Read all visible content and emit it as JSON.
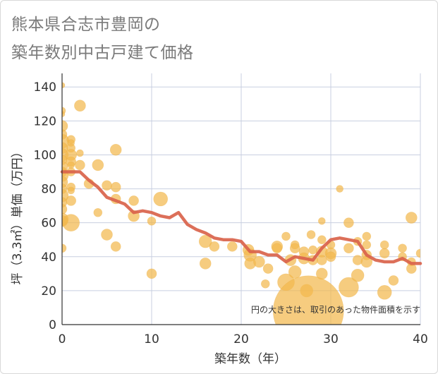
{
  "chart_data": {
    "type": "scatter",
    "title": "熊本県合志市豊岡の 築年数別中古戸建て価格",
    "title_lines": [
      "熊本県合志市豊岡の",
      "築年数別中古戸建て価格"
    ],
    "xlabel": "築年数（年）",
    "ylabel": "坪（3.3㎡）単価（万円）",
    "xlim": [
      0,
      40
    ],
    "ylim": [
      0,
      148
    ],
    "xticks": [
      0,
      10,
      20,
      30,
      40
    ],
    "yticks": [
      0,
      20,
      40,
      60,
      80,
      100,
      120,
      140
    ],
    "grid": true,
    "note": "円の大きさは、取引のあった物件面積を示す",
    "colors": {
      "bubble": "#f3b84e",
      "trend": "#d9634b",
      "grid": "#c8cfe0"
    },
    "scatter": [
      {
        "x": 0,
        "y": 141,
        "s": 4
      },
      {
        "x": 0,
        "y": 126,
        "s": 5
      },
      {
        "x": 0,
        "y": 124,
        "s": 4
      },
      {
        "x": 0,
        "y": 117,
        "s": 8
      },
      {
        "x": 0,
        "y": 112,
        "s": 7
      },
      {
        "x": 0,
        "y": 108,
        "s": 10
      },
      {
        "x": 0,
        "y": 104,
        "s": 8
      },
      {
        "x": 0,
        "y": 100,
        "s": 9
      },
      {
        "x": 0,
        "y": 97,
        "s": 7
      },
      {
        "x": 0,
        "y": 93,
        "s": 8
      },
      {
        "x": 0,
        "y": 90,
        "s": 7
      },
      {
        "x": 0,
        "y": 88,
        "s": 9
      },
      {
        "x": 0,
        "y": 84,
        "s": 8
      },
      {
        "x": 0,
        "y": 80,
        "s": 7
      },
      {
        "x": 0,
        "y": 76,
        "s": 9
      },
      {
        "x": 0,
        "y": 72,
        "s": 7
      },
      {
        "x": 0,
        "y": 68,
        "s": 7
      },
      {
        "x": 0,
        "y": 62,
        "s": 9
      },
      {
        "x": 0,
        "y": 61,
        "s": 8
      },
      {
        "x": 0,
        "y": 45,
        "s": 6
      },
      {
        "x": 1,
        "y": 109,
        "s": 6
      },
      {
        "x": 1,
        "y": 107,
        "s": 5
      },
      {
        "x": 1,
        "y": 104,
        "s": 6
      },
      {
        "x": 1,
        "y": 100,
        "s": 8
      },
      {
        "x": 1,
        "y": 96,
        "s": 7
      },
      {
        "x": 1,
        "y": 94,
        "s": 5
      },
      {
        "x": 1,
        "y": 90,
        "s": 6
      },
      {
        "x": 1,
        "y": 81,
        "s": 6
      },
      {
        "x": 1,
        "y": 79,
        "s": 5
      },
      {
        "x": 1,
        "y": 73,
        "s": 7
      },
      {
        "x": 1,
        "y": 60,
        "s": 12
      },
      {
        "x": 2,
        "y": 129,
        "s": 8
      },
      {
        "x": 2,
        "y": 101,
        "s": 5
      },
      {
        "x": 2,
        "y": 94,
        "s": 7
      },
      {
        "x": 3,
        "y": 83,
        "s": 7
      },
      {
        "x": 4,
        "y": 94,
        "s": 8
      },
      {
        "x": 4,
        "y": 66,
        "s": 6
      },
      {
        "x": 5,
        "y": 82,
        "s": 7
      },
      {
        "x": 5,
        "y": 53,
        "s": 8
      },
      {
        "x": 6,
        "y": 103,
        "s": 8
      },
      {
        "x": 6,
        "y": 81,
        "s": 7
      },
      {
        "x": 6,
        "y": 74,
        "s": 7
      },
      {
        "x": 6,
        "y": 46,
        "s": 7
      },
      {
        "x": 8,
        "y": 73,
        "s": 7
      },
      {
        "x": 8,
        "y": 64,
        "s": 8
      },
      {
        "x": 10,
        "y": 61,
        "s": 6
      },
      {
        "x": 10,
        "y": 30,
        "s": 7
      },
      {
        "x": 11,
        "y": 74,
        "s": 10
      },
      {
        "x": 16,
        "y": 49,
        "s": 9
      },
      {
        "x": 16,
        "y": 36,
        "s": 8
      },
      {
        "x": 17,
        "y": 46,
        "s": 7
      },
      {
        "x": 19,
        "y": 46,
        "s": 7
      },
      {
        "x": 20.8,
        "y": 44,
        "s": 8
      },
      {
        "x": 21,
        "y": 41,
        "s": 9
      },
      {
        "x": 21,
        "y": 36,
        "s": 8
      },
      {
        "x": 22,
        "y": 37,
        "s": 8
      },
      {
        "x": 22.7,
        "y": 24,
        "s": 6
      },
      {
        "x": 23,
        "y": 33,
        "s": 7
      },
      {
        "x": 24,
        "y": 46,
        "s": 8
      },
      {
        "x": 24,
        "y": 45,
        "s": 7
      },
      {
        "x": 25,
        "y": 52,
        "s": 6
      },
      {
        "x": 25,
        "y": 25,
        "s": 12
      },
      {
        "x": 25.5,
        "y": 38,
        "s": 8
      },
      {
        "x": 26,
        "y": 47,
        "s": 6
      },
      {
        "x": 26,
        "y": 31,
        "s": 9
      },
      {
        "x": 26,
        "y": 45,
        "s": 7
      },
      {
        "x": 27,
        "y": 43,
        "s": 7
      },
      {
        "x": 27,
        "y": 39,
        "s": 8
      },
      {
        "x": 27.3,
        "y": 20,
        "s": 9
      },
      {
        "x": 27.8,
        "y": 53,
        "s": 6
      },
      {
        "x": 28,
        "y": 44,
        "s": 6
      },
      {
        "x": 28,
        "y": 38,
        "s": 7
      },
      {
        "x": 27.5,
        "y": 8,
        "s": 50
      },
      {
        "x": 29,
        "y": 61,
        "s": 5
      },
      {
        "x": 29,
        "y": 50,
        "s": 6
      },
      {
        "x": 29,
        "y": 43,
        "s": 8
      },
      {
        "x": 29,
        "y": 38,
        "s": 7
      },
      {
        "x": 29,
        "y": 30,
        "s": 8
      },
      {
        "x": 30,
        "y": 47,
        "s": 6
      },
      {
        "x": 30,
        "y": 42,
        "s": 8
      },
      {
        "x": 30,
        "y": 40,
        "s": 7
      },
      {
        "x": 31,
        "y": 80,
        "s": 5
      },
      {
        "x": 32,
        "y": 60,
        "s": 7
      },
      {
        "x": 32,
        "y": 45,
        "s": 7
      },
      {
        "x": 32,
        "y": 22,
        "s": 14
      },
      {
        "x": 33,
        "y": 49,
        "s": 6
      },
      {
        "x": 33,
        "y": 38,
        "s": 7
      },
      {
        "x": 33,
        "y": 29,
        "s": 9
      },
      {
        "x": 34,
        "y": 52,
        "s": 6
      },
      {
        "x": 34,
        "y": 47,
        "s": 6
      },
      {
        "x": 34,
        "y": 41,
        "s": 7
      },
      {
        "x": 34,
        "y": 37,
        "s": 8
      },
      {
        "x": 36,
        "y": 47,
        "s": 6
      },
      {
        "x": 36,
        "y": 42,
        "s": 7
      },
      {
        "x": 36,
        "y": 19,
        "s": 10
      },
      {
        "x": 37,
        "y": 26,
        "s": 7
      },
      {
        "x": 38,
        "y": 45,
        "s": 6
      },
      {
        "x": 38,
        "y": 40,
        "s": 6
      },
      {
        "x": 39,
        "y": 63,
        "s": 8
      },
      {
        "x": 39,
        "y": 37,
        "s": 6
      },
      {
        "x": 39,
        "y": 33,
        "s": 7
      },
      {
        "x": 40,
        "y": 42,
        "s": 6
      }
    ],
    "trend": [
      [
        0,
        90
      ],
      [
        1,
        90
      ],
      [
        2,
        90
      ],
      [
        3,
        85
      ],
      [
        4,
        81
      ],
      [
        5,
        75
      ],
      [
        6,
        73
      ],
      [
        7,
        71
      ],
      [
        8,
        66
      ],
      [
        9,
        67
      ],
      [
        10,
        66
      ],
      [
        11,
        64
      ],
      [
        12,
        63
      ],
      [
        13,
        66
      ],
      [
        14,
        59
      ],
      [
        15,
        56
      ],
      [
        16,
        54
      ],
      [
        17,
        51
      ],
      [
        18,
        50
      ],
      [
        19,
        50
      ],
      [
        20,
        49
      ],
      [
        21,
        43
      ],
      [
        22,
        43
      ],
      [
        23,
        41
      ],
      [
        24,
        41
      ],
      [
        25,
        37
      ],
      [
        26,
        40
      ],
      [
        27,
        39
      ],
      [
        28,
        38
      ],
      [
        29,
        45
      ],
      [
        30,
        50
      ],
      [
        31,
        51
      ],
      [
        32,
        50
      ],
      [
        33,
        49
      ],
      [
        34,
        41
      ],
      [
        35,
        38
      ],
      [
        36,
        37
      ],
      [
        37,
        37
      ],
      [
        38,
        39
      ],
      [
        39,
        36
      ],
      [
        40,
        36
      ]
    ]
  }
}
